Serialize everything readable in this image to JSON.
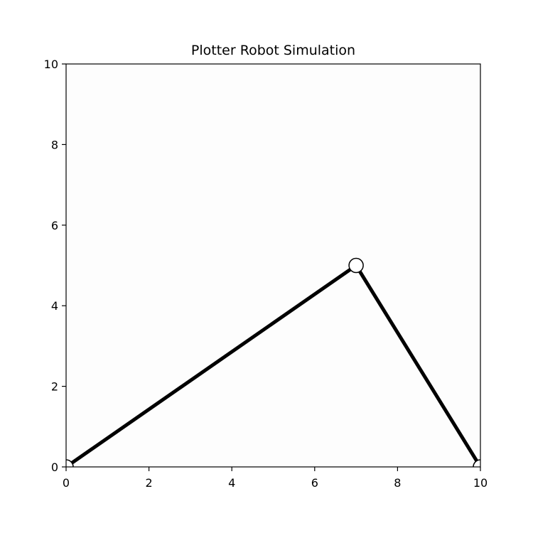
{
  "chart_data": {
    "type": "line",
    "title": "Plotter Robot Simulation",
    "xlabel": "",
    "ylabel": "",
    "xlim": [
      0,
      10
    ],
    "ylim": [
      0,
      10
    ],
    "x_ticks": [
      "0",
      "2",
      "4",
      "6",
      "8",
      "10"
    ],
    "y_ticks": [
      "0",
      "2",
      "4",
      "6",
      "8",
      "10"
    ],
    "grid": false,
    "series": [
      {
        "x": [
          0,
          7,
          10
        ],
        "y": [
          0,
          5,
          0
        ],
        "color": "#000000",
        "marker": "circle",
        "marker_face": "#ffffff",
        "marker_edge": "#000000"
      }
    ],
    "axes_background": "#fdfdfd"
  }
}
